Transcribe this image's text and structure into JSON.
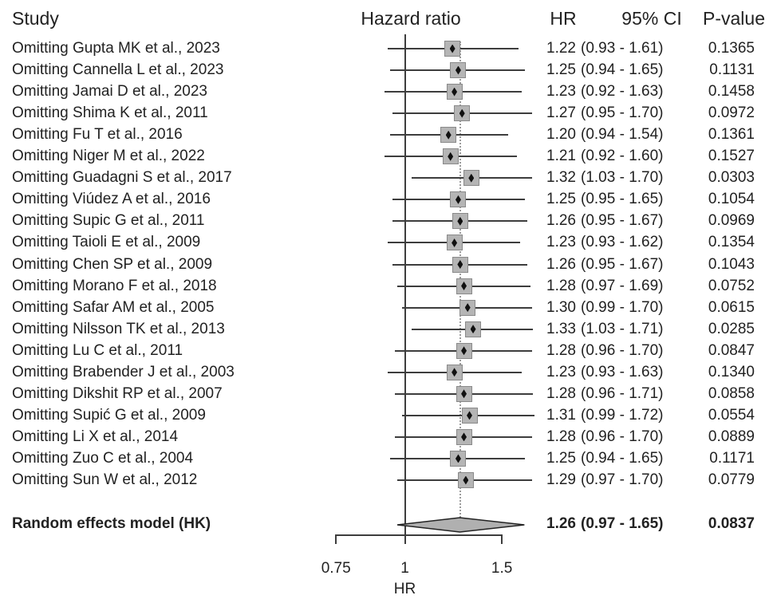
{
  "headers": {
    "study": "Study",
    "plot": "Hazard ratio",
    "hr": "HR",
    "ci": "95% CI",
    "p": "P-value"
  },
  "colors": {
    "text": "#222222",
    "line": "#3d3d3d",
    "square_fill": "#b5b5b5",
    "square_border": "#8a8a8a",
    "diamond_fill": "#b0b0b0",
    "diamond_border": "#222222",
    "dotted_line": "#9b9b9b"
  },
  "chart_data": {
    "type": "forest",
    "x_scale": "log",
    "x_ticks": [
      0.75,
      1,
      1.5
    ],
    "x_tick_labels": [
      "0.75",
      "1",
      "1.5"
    ],
    "xlabel": "HR",
    "reference_line": 1,
    "pooled_dotted_line": 1.26,
    "column_header": "Hazard ratio",
    "studies": [
      {
        "label": "Omitting Gupta MK et al., 2023",
        "hr": "1.22",
        "ci": "(0.93 - 1.61)",
        "p": "0.1365"
      },
      {
        "label": "Omitting Cannella L et al., 2023",
        "hr": "1.25",
        "ci": "(0.94 - 1.65)",
        "p": "0.1131"
      },
      {
        "label": "Omitting Jamai D et al., 2023",
        "hr": "1.23",
        "ci": "(0.92 - 1.63)",
        "p": "0.1458"
      },
      {
        "label": "Omitting Shima K et al., 2011",
        "hr": "1.27",
        "ci": "(0.95 - 1.70)",
        "p": "0.0972"
      },
      {
        "label": "Omitting Fu T et al., 2016",
        "hr": "1.20",
        "ci": "(0.94 - 1.54)",
        "p": "0.1361"
      },
      {
        "label": "Omitting Niger M et al., 2022",
        "hr": "1.21",
        "ci": "(0.92 - 1.60)",
        "p": "0.1527"
      },
      {
        "label": "Omitting Guadagni S et al., 2017",
        "hr": "1.32",
        "ci": "(1.03 - 1.70)",
        "p": "0.0303"
      },
      {
        "label": "Omitting Viúdez A et al., 2016",
        "hr": "1.25",
        "ci": "(0.95 - 1.65)",
        "p": "0.1054"
      },
      {
        "label": "Omitting Supic G et al., 2011",
        "hr": "1.26",
        "ci": "(0.95 - 1.67)",
        "p": "0.0969"
      },
      {
        "label": "Omitting Taioli E et al., 2009",
        "hr": "1.23",
        "ci": "(0.93 - 1.62)",
        "p": "0.1354"
      },
      {
        "label": "Omitting Chen SP et al., 2009",
        "hr": "1.26",
        "ci": "(0.95 - 1.67)",
        "p": "0.1043"
      },
      {
        "label": "Omitting Morano F et al., 2018",
        "hr": "1.28",
        "ci": "(0.97 - 1.69)",
        "p": "0.0752"
      },
      {
        "label": "Omitting Safar AM et al., 2005",
        "hr": "1.30",
        "ci": "(0.99 - 1.70)",
        "p": "0.0615"
      },
      {
        "label": "Omitting Nilsson TK et al., 2013",
        "hr": "1.33",
        "ci": "(1.03 - 1.71)",
        "p": "0.0285"
      },
      {
        "label": "Omitting Lu C et al., 2011",
        "hr": "1.28",
        "ci": "(0.96 - 1.70)",
        "p": "0.0847"
      },
      {
        "label": "Omitting Brabender J et al., 2003",
        "hr": "1.23",
        "ci": "(0.93 - 1.63)",
        "p": "0.1340"
      },
      {
        "label": "Omitting Dikshit RP et al., 2007",
        "hr": "1.28",
        "ci": "(0.96 - 1.71)",
        "p": "0.0858"
      },
      {
        "label": "Omitting Supić G et al., 2009",
        "hr": "1.31",
        "ci": "(0.99 - 1.72)",
        "p": "0.0554"
      },
      {
        "label": "Omitting Li X et al., 2014",
        "hr": "1.28",
        "ci": "(0.96 - 1.70)",
        "p": "0.0889"
      },
      {
        "label": "Omitting Zuo C et al., 2004",
        "hr": "1.25",
        "ci": "(0.94 - 1.65)",
        "p": "0.1171"
      },
      {
        "label": "Omitting Sun W et al., 2012",
        "hr": "1.29",
        "ci": "(0.97 - 1.70)",
        "p": "0.0779"
      }
    ],
    "pooled": {
      "label": "Random effects model (HK)",
      "hr": "1.26",
      "ci": "(0.97 - 1.65)",
      "p": "0.0837"
    }
  }
}
